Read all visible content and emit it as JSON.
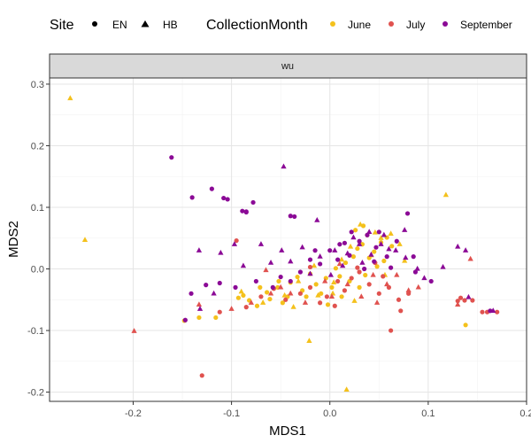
{
  "chart_data": {
    "type": "scatter",
    "facet": "wu",
    "xlabel": "MDS1",
    "ylabel": "MDS2",
    "xlim": [
      -0.285,
      0.2
    ],
    "ylim": [
      -0.215,
      0.31
    ],
    "xticks": [
      -0.2,
      -0.1,
      0.0,
      0.1,
      0.2
    ],
    "xtick_labels": [
      "-0.2",
      "-0.1",
      "0.0",
      "0.1",
      "0.2"
    ],
    "yticks": [
      -0.2,
      -0.1,
      0.0,
      0.1,
      0.2,
      0.3
    ],
    "ytick_labels": [
      "-0.2",
      "-0.1",
      "0.0",
      "0.1",
      "0.2",
      "0.3"
    ],
    "grid": true,
    "legend_position": "top",
    "legend": {
      "shape_title": "Site",
      "shape_entries": [
        {
          "label": "EN",
          "shape": "circle"
        },
        {
          "label": "HB",
          "shape": "triangle"
        }
      ],
      "color_title": "CollectionMonth",
      "color_entries": [
        {
          "label": "June",
          "color": "#F4C11C"
        },
        {
          "label": "July",
          "color": "#E0524F"
        },
        {
          "label": "September",
          "color": "#8B0A96"
        }
      ]
    },
    "series": [
      {
        "site": "EN",
        "month": "June",
        "points": [
          [
            -0.148,
            -0.084
          ],
          [
            -0.133,
            -0.079
          ],
          [
            -0.116,
            -0.079
          ],
          [
            -0.093,
            -0.047
          ],
          [
            -0.088,
            -0.043
          ],
          [
            -0.082,
            -0.051
          ],
          [
            -0.074,
            -0.06
          ],
          [
            -0.064,
            -0.038
          ],
          [
            -0.061,
            -0.049
          ],
          [
            -0.053,
            -0.03
          ],
          [
            -0.048,
            -0.055
          ],
          [
            -0.043,
            -0.045
          ],
          [
            -0.04,
            -0.022
          ],
          [
            -0.033,
            -0.013
          ],
          [
            -0.028,
            -0.035
          ],
          [
            -0.024,
            -0.045
          ],
          [
            -0.02,
            -0.008
          ],
          [
            -0.014,
            -0.025
          ],
          [
            -0.009,
            -0.04
          ],
          [
            -0.004,
            -0.015
          ],
          [
            0.002,
            -0.03
          ],
          [
            0.006,
            0.001
          ],
          [
            0.01,
            -0.012
          ],
          [
            0.016,
            0.01
          ],
          [
            0.02,
            -0.02
          ],
          [
            0.024,
            0.02
          ],
          [
            0.028,
            0.033
          ],
          [
            0.033,
            0.04
          ],
          [
            0.038,
            0.055
          ],
          [
            0.04,
            0.018
          ],
          [
            0.045,
            0.028
          ],
          [
            0.048,
            0.004
          ],
          [
            0.052,
            0.043
          ],
          [
            0.055,
            0.013
          ],
          [
            0.058,
            0.051
          ],
          [
            0.063,
            0.037
          ],
          [
            0.012,
            -0.045
          ],
          [
            -0.002,
            -0.058
          ],
          [
            0.03,
            -0.03
          ],
          [
            0.036,
            -0.01
          ],
          [
            0.138,
            -0.091
          ],
          [
            -0.052,
            -0.02
          ],
          [
            0.026,
            0.063
          ],
          [
            0.034,
            0.07
          ],
          [
            -0.071,
            -0.03
          ]
        ]
      },
      {
        "site": "HB",
        "month": "June",
        "points": [
          [
            -0.264,
            0.277
          ],
          [
            -0.249,
            0.047
          ],
          [
            0.118,
            0.12
          ],
          [
            -0.021,
            -0.117
          ],
          [
            0.017,
            -0.196
          ],
          [
            -0.09,
            -0.037
          ],
          [
            -0.068,
            -0.055
          ],
          [
            -0.046,
            -0.043
          ],
          [
            -0.032,
            -0.02
          ],
          [
            -0.012,
            -0.043
          ],
          [
            0.004,
            -0.022
          ],
          [
            0.012,
            0.015
          ],
          [
            0.021,
            0.036
          ],
          [
            0.031,
            0.072
          ],
          [
            0.042,
            0.022
          ],
          [
            0.052,
            0.05
          ],
          [
            0.056,
            -0.01
          ],
          [
            0.071,
            0.04
          ],
          [
            0.076,
            0.013
          ],
          [
            0.025,
            -0.052
          ],
          [
            0.003,
            -0.04
          ],
          [
            -0.037,
            -0.062
          ],
          [
            0.062,
            0.057
          ],
          [
            0.046,
            0.059
          ],
          [
            -0.016,
            0.005
          ]
        ]
      },
      {
        "site": "EN",
        "month": "July",
        "points": [
          [
            -0.13,
            -0.173
          ],
          [
            -0.095,
            0.046
          ],
          [
            -0.112,
            -0.07
          ],
          [
            -0.085,
            -0.062
          ],
          [
            -0.07,
            -0.045
          ],
          [
            -0.057,
            -0.032
          ],
          [
            -0.045,
            -0.05
          ],
          [
            -0.03,
            -0.04
          ],
          [
            -0.02,
            -0.03
          ],
          [
            -0.01,
            -0.055
          ],
          [
            -0.003,
            -0.045
          ],
          [
            0.005,
            -0.06
          ],
          [
            0.015,
            -0.035
          ],
          [
            0.022,
            -0.015
          ],
          [
            0.03,
            -0.005
          ],
          [
            0.04,
            -0.025
          ],
          [
            0.05,
            -0.04
          ],
          [
            0.06,
            -0.03
          ],
          [
            0.07,
            -0.05
          ],
          [
            0.062,
            -0.1
          ],
          [
            0.072,
            -0.068
          ],
          [
            0.08,
            -0.04
          ],
          [
            0.133,
            -0.047
          ],
          [
            0.137,
            -0.051
          ],
          [
            0.155,
            -0.07
          ],
          [
            0.16,
            -0.07
          ],
          [
            0.17,
            -0.07
          ],
          [
            0.145,
            -0.051
          ],
          [
            0.13,
            -0.052
          ],
          [
            -0.02,
            0.003
          ],
          [
            0.028,
            0.002
          ],
          [
            0.046,
            0.01
          ],
          [
            0.054,
            -0.012
          ],
          [
            0.008,
            -0.02
          ]
        ]
      },
      {
        "site": "HB",
        "month": "July",
        "points": [
          [
            -0.199,
            -0.101
          ],
          [
            -0.133,
            -0.058
          ],
          [
            -0.1,
            -0.065
          ],
          [
            -0.08,
            -0.055
          ],
          [
            -0.06,
            -0.04
          ],
          [
            -0.05,
            -0.03
          ],
          [
            -0.04,
            -0.04
          ],
          [
            -0.025,
            -0.055
          ],
          [
            -0.005,
            -0.02
          ],
          [
            0.002,
            -0.045
          ],
          [
            0.018,
            -0.025
          ],
          [
            0.032,
            -0.045
          ],
          [
            0.044,
            -0.01
          ],
          [
            0.058,
            -0.025
          ],
          [
            0.068,
            -0.01
          ],
          [
            0.08,
            -0.035
          ],
          [
            0.143,
            0.016
          ],
          [
            0.13,
            -0.058
          ],
          [
            0.09,
            -0.03
          ],
          [
            0.048,
            -0.055
          ],
          [
            0.01,
            0.008
          ],
          [
            -0.065,
            -0.002
          ]
        ]
      },
      {
        "site": "EN",
        "month": "September",
        "points": [
          [
            -0.161,
            0.181
          ],
          [
            -0.14,
            0.116
          ],
          [
            -0.12,
            0.13
          ],
          [
            -0.108,
            0.115
          ],
          [
            -0.104,
            0.113
          ],
          [
            -0.089,
            0.094
          ],
          [
            -0.085,
            0.093
          ],
          [
            -0.078,
            0.108
          ],
          [
            -0.085,
            0.092
          ],
          [
            -0.04,
            0.086
          ],
          [
            -0.036,
            0.085
          ],
          [
            -0.126,
            -0.026
          ],
          [
            -0.141,
            -0.04
          ],
          [
            -0.112,
            -0.023
          ],
          [
            -0.096,
            -0.03
          ],
          [
            -0.075,
            -0.02
          ],
          [
            -0.05,
            -0.013
          ],
          [
            -0.03,
            -0.005
          ],
          [
            -0.01,
            0.008
          ],
          [
            0.008,
            0.015
          ],
          [
            0.015,
            0.042
          ],
          [
            0.022,
            0.06
          ],
          [
            0.03,
            0.045
          ],
          [
            0.038,
            0.055
          ],
          [
            0.047,
            0.035
          ],
          [
            0.058,
            0.02
          ],
          [
            0.068,
            0.045
          ],
          [
            0.079,
            0.09
          ],
          [
            0.085,
            0.02
          ],
          [
            0.103,
            -0.02
          ],
          [
            -0.147,
            -0.083
          ],
          [
            0.035,
            0.0
          ],
          [
            0.05,
            0.06
          ],
          [
            0.02,
            0.022
          ],
          [
            -0.02,
            0.015
          ],
          [
            0.045,
            0.012
          ],
          [
            0.0,
            0.03
          ],
          [
            0.163,
            -0.068
          ],
          [
            0.087,
            -0.005
          ],
          [
            0.062,
            0.002
          ],
          [
            -0.015,
            0.03
          ],
          [
            0.01,
            0.04
          ],
          [
            -0.058,
            -0.03
          ],
          [
            -0.04,
            -0.02
          ]
        ]
      },
      {
        "site": "HB",
        "month": "September",
        "points": [
          [
            -0.047,
            0.166
          ],
          [
            -0.013,
            0.079
          ],
          [
            -0.133,
            0.03
          ],
          [
            -0.111,
            0.026
          ],
          [
            -0.097,
            0.04
          ],
          [
            -0.07,
            0.04
          ],
          [
            -0.049,
            0.03
          ],
          [
            -0.028,
            0.035
          ],
          [
            -0.01,
            0.02
          ],
          [
            0.005,
            0.03
          ],
          [
            0.018,
            0.025
          ],
          [
            0.03,
            0.04
          ],
          [
            0.042,
            0.023
          ],
          [
            0.055,
            0.055
          ],
          [
            0.067,
            0.03
          ],
          [
            0.077,
            0.018
          ],
          [
            0.089,
            0.0
          ],
          [
            0.115,
            0.003
          ],
          [
            0.13,
            0.036
          ],
          [
            0.138,
            0.03
          ],
          [
            0.166,
            -0.068
          ],
          [
            0.141,
            -0.046
          ],
          [
            -0.118,
            -0.04
          ],
          [
            -0.132,
            -0.065
          ],
          [
            -0.088,
            0.005
          ],
          [
            -0.06,
            0.01
          ],
          [
            -0.02,
            -0.008
          ],
          [
            0.06,
            0.032
          ],
          [
            0.033,
            0.01
          ],
          [
            0.013,
            0.005
          ],
          [
            0.096,
            -0.015
          ],
          [
            0.04,
            0.06
          ],
          [
            0.076,
            0.063
          ],
          [
            0.052,
            0.04
          ],
          [
            0.001,
            -0.01
          ],
          [
            -0.04,
            0.012
          ],
          [
            0.024,
            0.051
          ]
        ]
      }
    ]
  }
}
